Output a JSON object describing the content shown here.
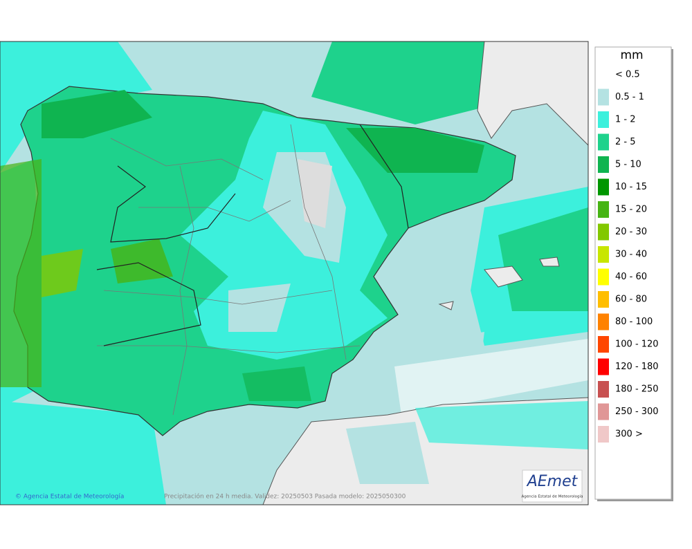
{
  "legend": {
    "title": "mm",
    "items": [
      {
        "label": "< 0.5",
        "color": "#ffffff"
      },
      {
        "label": "0.5 - 1",
        "color": "#b4e2e2"
      },
      {
        "label": "1 - 2",
        "color": "#3cf0dc"
      },
      {
        "label": "2 - 5",
        "color": "#1ed28c"
      },
      {
        "label": "5 - 10",
        "color": "#0fb450"
      },
      {
        "label": "10 - 15",
        "color": "#009600"
      },
      {
        "label": "15 - 20",
        "color": "#46b414"
      },
      {
        "label": "20 - 30",
        "color": "#82c800"
      },
      {
        "label": "30 - 40",
        "color": "#c8e600"
      },
      {
        "label": "40 - 60",
        "color": "#ffff00"
      },
      {
        "label": "60 - 80",
        "color": "#ffbe00"
      },
      {
        "label": "80 - 100",
        "color": "#ff8200"
      },
      {
        "label": "100 - 120",
        "color": "#ff4600"
      },
      {
        "label": "120 - 180",
        "color": "#ff0000"
      },
      {
        "label": "180 - 250",
        "color": "#c85050"
      },
      {
        "label": "250 - 300",
        "color": "#e09696"
      },
      {
        "label": "300 >",
        "color": "#f0c8c8"
      }
    ]
  },
  "footer": {
    "credit": "© Agencia Estatal de Meteorología",
    "caption": "Precipitación en 24 h media. Validez: 20250503 Pasada modelo: 2025050300"
  },
  "logo": {
    "name": "AEmet",
    "subtitle": "Agencia Estatal de Meteorología"
  }
}
